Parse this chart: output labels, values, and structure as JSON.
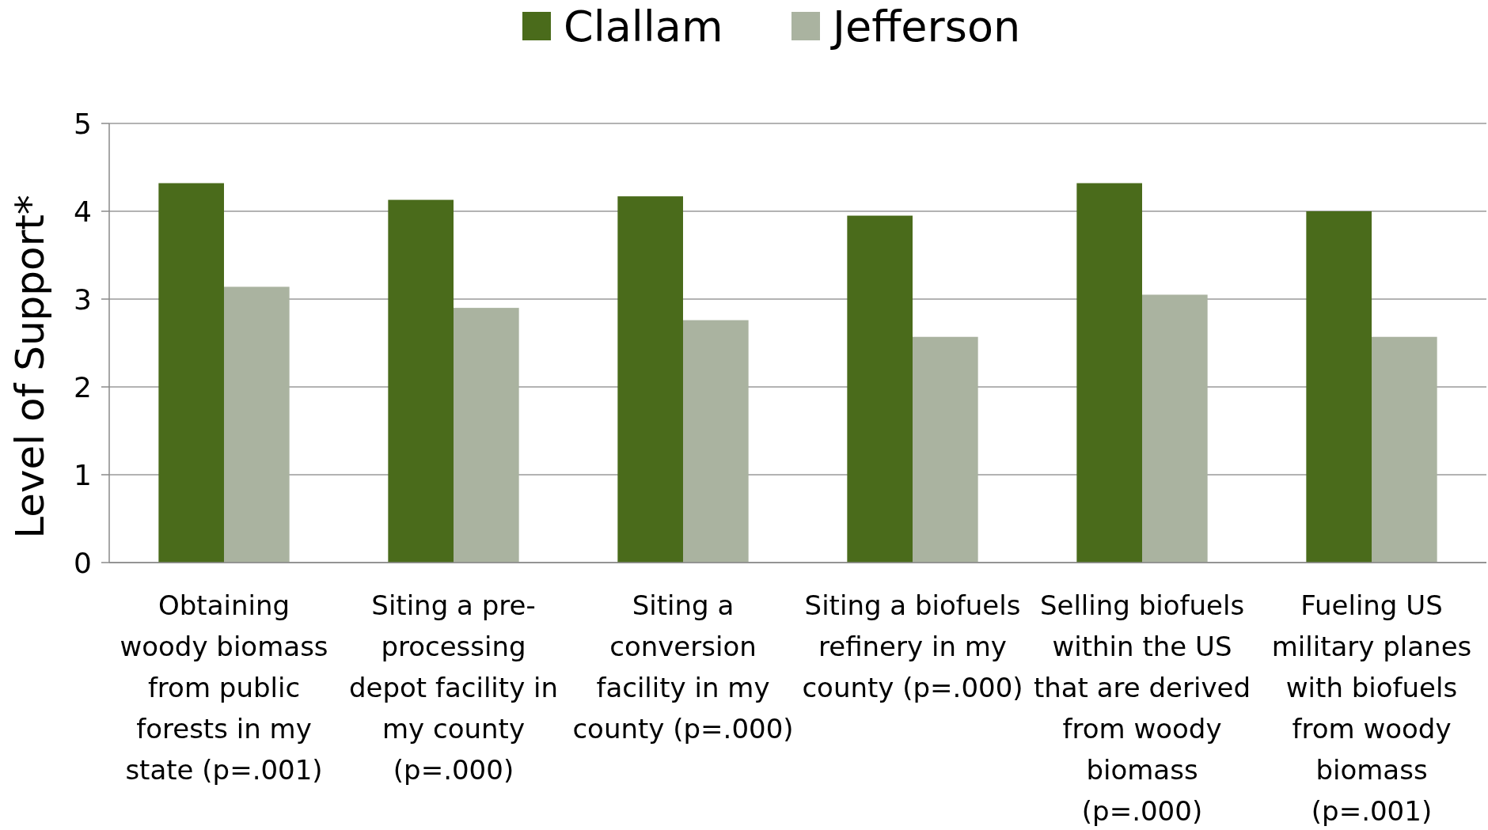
{
  "chart_data": {
    "type": "bar",
    "ylabel": "Level of Support*",
    "categories": [
      "Obtaining\nwoody biomass\nfrom public\nforests in my\nstate (p=.001)",
      "Siting a pre-\nprocessing\ndepot facility in\nmy county\n(p=.000)",
      "Siting a\nconversion\nfacility in my\ncounty (p=.000)",
      "Siting a biofuels\nrefinery in my\ncounty (p=.000)",
      "Selling biofuels\nwithin the US\nthat are derived\nfrom woody\nbiomass\n(p=.000)",
      "Fueling US\nmilitary planes\nwith biofuels\nfrom woody\nbiomass\n(p=.001)"
    ],
    "series": [
      {
        "name": "Clallam",
        "color": "#4a6b1b",
        "values": [
          4.32,
          4.13,
          4.17,
          3.95,
          4.32,
          4.0
        ]
      },
      {
        "name": "Jefferson",
        "color": "#aab3a0",
        "values": [
          3.14,
          2.9,
          2.76,
          2.57,
          3.05,
          2.57
        ]
      }
    ],
    "ylim": [
      0,
      5
    ],
    "yticks": [
      0,
      1,
      2,
      3,
      4,
      5
    ],
    "grid": "y",
    "legend": "top"
  }
}
